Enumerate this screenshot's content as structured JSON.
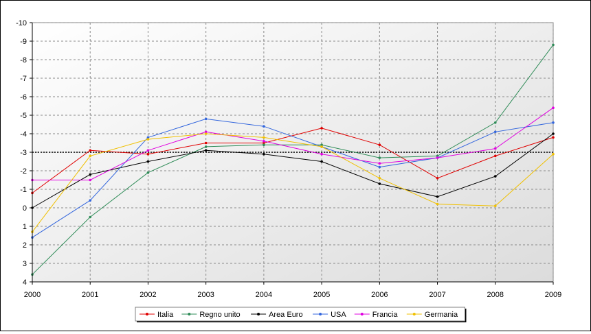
{
  "chart_data": {
    "type": "line",
    "title": "",
    "xlabel": "",
    "ylabel": "",
    "x": [
      2000,
      2001,
      2002,
      2003,
      2004,
      2005,
      2006,
      2007,
      2008,
      2009
    ],
    "ylim": [
      4,
      -10
    ],
    "y_reversed": true,
    "yticks": [
      4,
      3,
      2,
      1,
      0,
      -1,
      -2,
      -3,
      -4,
      -5,
      -6,
      -7,
      -8,
      -9,
      -10
    ],
    "reference_line": -3,
    "grid": true,
    "legend_position": "bottom-center",
    "series": [
      {
        "name": "Italia",
        "color": "#e00000",
        "values": [
          -0.8,
          -3.1,
          -2.9,
          -3.5,
          -3.5,
          -4.3,
          -3.4,
          -1.6,
          -2.8,
          -3.8
        ]
      },
      {
        "name": "Regno unito",
        "color": "#2e8b57",
        "values": [
          3.6,
          0.5,
          -1.9,
          -3.3,
          -3.4,
          -3.4,
          -2.7,
          -2.8,
          -4.6,
          -8.8
        ]
      },
      {
        "name": "Area Euro",
        "color": "#000000",
        "values": [
          0.0,
          -1.8,
          -2.5,
          -3.1,
          -2.9,
          -2.5,
          -1.3,
          -0.6,
          -1.7,
          -4.0
        ]
      },
      {
        "name": "USA",
        "color": "#3366dd",
        "values": [
          1.6,
          -0.4,
          -3.8,
          -4.8,
          -4.4,
          -3.3,
          -2.2,
          -2.7,
          -4.1,
          -4.6
        ]
      },
      {
        "name": "Francia",
        "color": "#e000e0",
        "values": [
          -1.5,
          -1.5,
          -3.1,
          -4.1,
          -3.6,
          -2.9,
          -2.4,
          -2.7,
          -3.2,
          -5.4
        ]
      },
      {
        "name": "Germania",
        "color": "#f0c000",
        "values": [
          1.3,
          -2.8,
          -3.7,
          -4.0,
          -3.8,
          -3.3,
          -1.6,
          -0.2,
          -0.1,
          -2.9
        ]
      }
    ]
  }
}
